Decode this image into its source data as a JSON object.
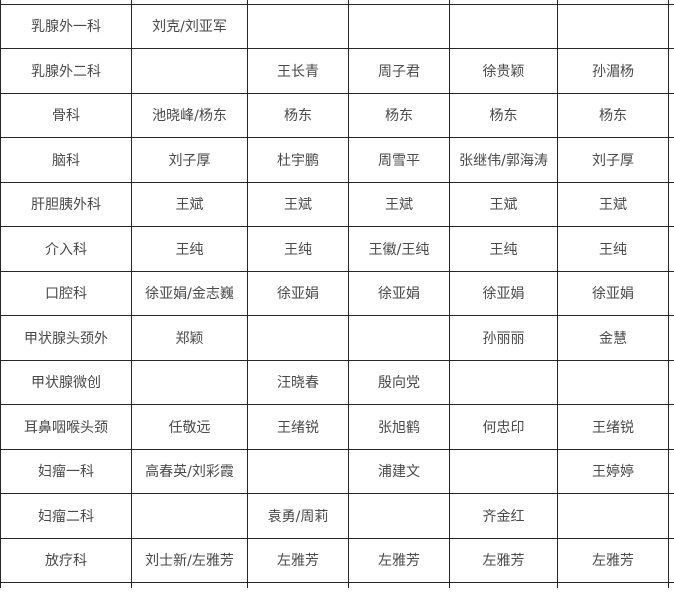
{
  "colors": {
    "department_bg": "#a9d18e",
    "grid_border": "#262626",
    "text": "#4a4a4a",
    "muted_text": "#8c8c8c",
    "cell_bg": "#ffffff"
  },
  "table": {
    "description_rows": 13,
    "rows": [
      {
        "dept": "乳腺外一科",
        "cells": [
          "刘克/刘亚军",
          "",
          "",
          "",
          ""
        ]
      },
      {
        "dept": "乳腺外二科",
        "cells": [
          "",
          "王长青",
          "周子君",
          "徐贵颖",
          "孙湄杨"
        ]
      },
      {
        "dept": "骨科",
        "cells": [
          "池晓峰/杨东",
          "杨东",
          "杨东",
          "杨东",
          "杨东"
        ]
      },
      {
        "dept": "脑科",
        "cells": [
          "刘子厚",
          "杜宇鹏",
          "周雪平",
          "张继伟/郭海涛",
          "刘子厚"
        ]
      },
      {
        "dept": "肝胆胰外科",
        "cells": [
          "王斌",
          "王斌",
          "王斌",
          "王斌",
          "王斌"
        ]
      },
      {
        "dept": "介入科",
        "cells": [
          "王纯",
          "王纯",
          "王徽/王纯",
          "王纯",
          "王纯"
        ]
      },
      {
        "dept": "口腔科",
        "cells": [
          "徐亚娟/金志巍",
          "徐亚娟",
          "徐亚娟",
          "徐亚娟",
          "徐亚娟"
        ]
      },
      {
        "dept": "甲状腺头颈外",
        "cells": [
          "郑颖",
          "",
          "",
          "孙丽丽",
          "金慧"
        ]
      },
      {
        "dept": "甲状腺微创",
        "cells": [
          "",
          "汪晓春",
          "殷向党",
          "",
          ""
        ]
      },
      {
        "dept": "耳鼻咽喉头颈",
        "cells": [
          "任敬远",
          "王绪锐",
          "张旭鹤",
          "何忠印",
          "王绪锐"
        ]
      },
      {
        "dept": "妇瘤一科",
        "cells": [
          "高春英/刘彩霞",
          "",
          "浦建文",
          "",
          "王婷婷"
        ]
      },
      {
        "dept": "妇瘤二科",
        "cells": [
          "",
          "袁勇/周莉",
          "",
          "齐金红",
          ""
        ]
      },
      {
        "dept": "放疗科",
        "cells": [
          "刘士新/左雅芳",
          "左雅芳",
          "左雅芳",
          "左雅芳",
          "左雅芳"
        ]
      }
    ],
    "presentation": {
      "left_aligned_cells": [
        "10-2",
        "10-4",
        "11-1"
      ],
      "muted_large_cells": [
        "11-3"
      ]
    }
  }
}
